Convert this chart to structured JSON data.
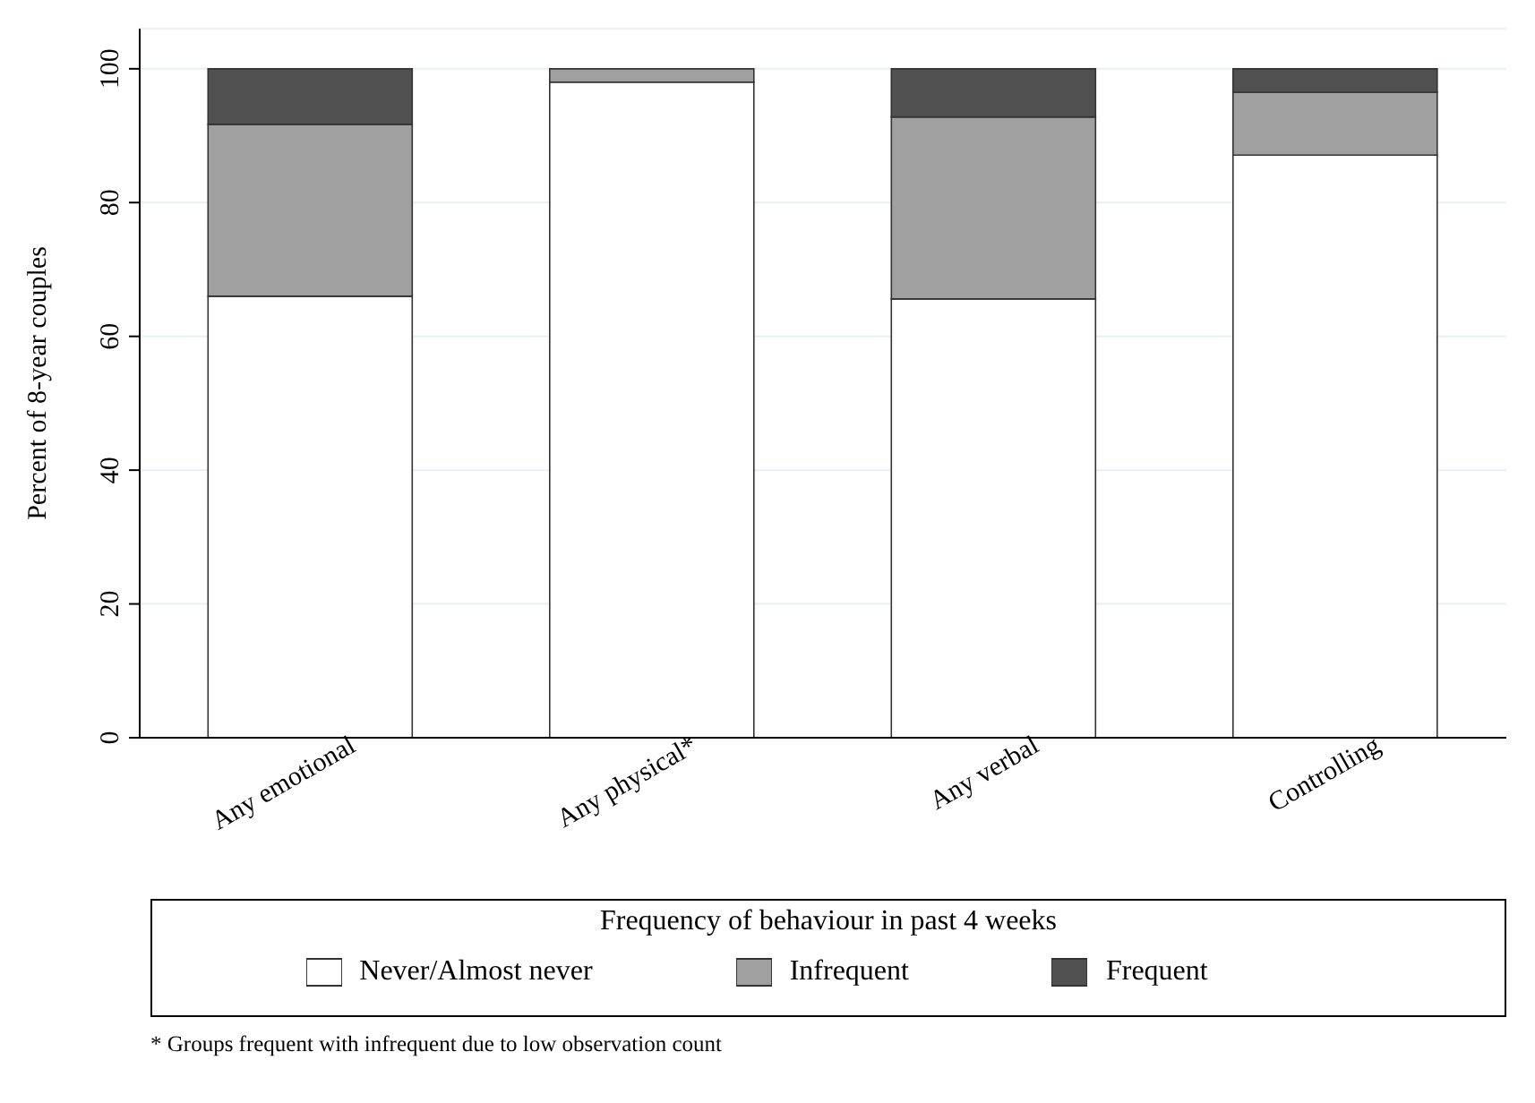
{
  "chart_data": {
    "type": "bar",
    "stacked": true,
    "ylabel": "Percent of 8-year couples",
    "categories": [
      "Any emotional",
      "Any physical*",
      "Any verbal",
      "Controlling"
    ],
    "series": [
      {
        "name": "Never/Almost never",
        "color": "#ffffff",
        "values": [
          66,
          98,
          65.6,
          87.1
        ]
      },
      {
        "name": "Infrequent",
        "color": "#a0a0a0",
        "values": [
          25.7,
          2,
          27.2,
          9.4
        ]
      },
      {
        "name": "Frequent",
        "color": "#505050",
        "values": [
          8.3,
          0,
          7.2,
          3.5
        ]
      }
    ],
    "ylim": [
      0,
      106
    ],
    "yticks": [
      0,
      20,
      40,
      60,
      80,
      100
    ],
    "grid": "y",
    "legend": "bottom",
    "legend_title": "Frequency of behaviour in past 4 weeks",
    "annotations": [
      "* Groups frequent with infrequent due to low observation count"
    ]
  }
}
